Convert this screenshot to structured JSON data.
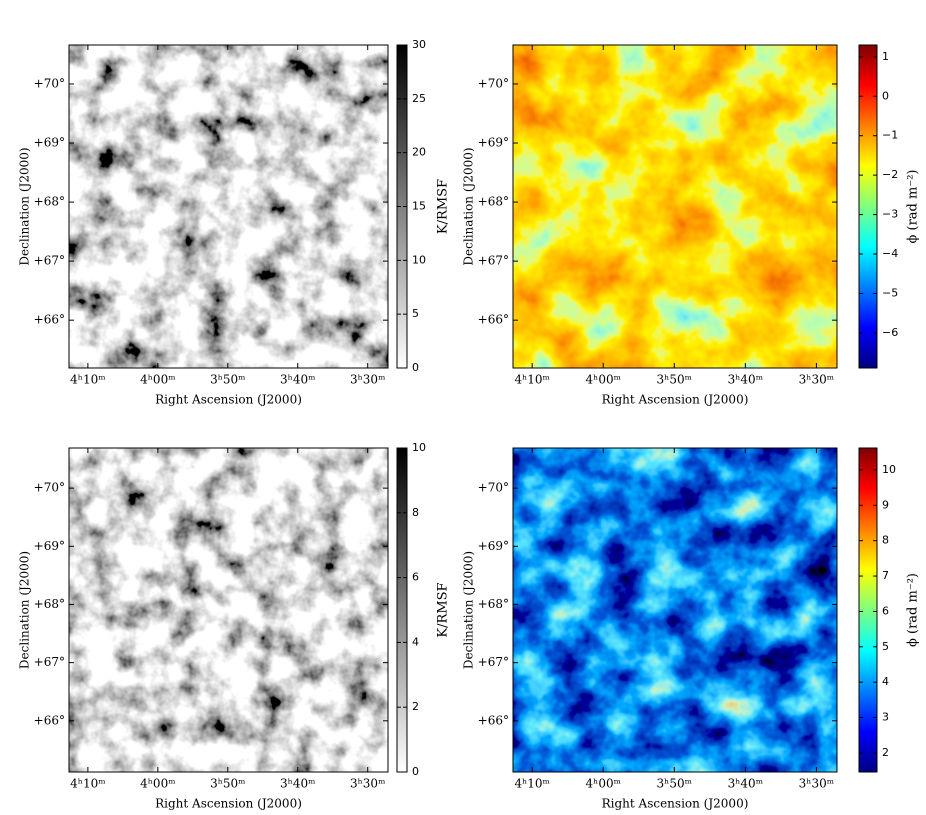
{
  "chart_data": [
    {
      "type": "image",
      "xlabel": "Right Ascension (J2000)",
      "ylabel": "Declination (J2000)",
      "xlim": [
        252.7,
        207.1
      ],
      "ylim": [
        65.19,
        70.66
      ],
      "xticks": [
        {
          "value": 250,
          "label": "4ʰ10ᵐ"
        },
        {
          "value": 240,
          "label": "4ʰ00ᵐ"
        },
        {
          "value": 230,
          "label": "3ʰ50ᵐ"
        },
        {
          "value": 220,
          "label": "3ʰ40ᵐ"
        },
        {
          "value": 210,
          "label": "3ʰ30ᵐ"
        }
      ],
      "yticks": [
        {
          "value": 66,
          "label": "+66°"
        },
        {
          "value": 67,
          "label": "+67°"
        },
        {
          "value": 68,
          "label": "+68°"
        },
        {
          "value": 69,
          "label": "+69°"
        },
        {
          "value": 70,
          "label": "+70°"
        }
      ],
      "colormap": "gray_r",
      "colorbar": {
        "label": "K/RMSF",
        "clim": [
          0,
          30
        ],
        "ticks": [
          0,
          5,
          10,
          15,
          20,
          25,
          30
        ]
      }
    },
    {
      "type": "image",
      "xlabel": "Right Ascension (J2000)",
      "ylabel": "Declination (J2000)",
      "xlim": [
        252.7,
        207.1
      ],
      "ylim": [
        65.19,
        70.66
      ],
      "xticks": [
        {
          "value": 250,
          "label": "4ʰ10ᵐ"
        },
        {
          "value": 240,
          "label": "4ʰ00ᵐ"
        },
        {
          "value": 230,
          "label": "3ʰ50ᵐ"
        },
        {
          "value": 220,
          "label": "3ʰ40ᵐ"
        },
        {
          "value": 210,
          "label": "3ʰ30ᵐ"
        }
      ],
      "yticks": [
        {
          "value": 66,
          "label": "+66°"
        },
        {
          "value": 67,
          "label": "+67°"
        },
        {
          "value": 68,
          "label": "+68°"
        },
        {
          "value": 69,
          "label": "+69°"
        },
        {
          "value": 70,
          "label": "+70°"
        }
      ],
      "colormap": "jet-warm",
      "colorbar": {
        "label": "ϕ (rad m⁻²)",
        "clim": [
          -6.89,
          1.3
        ],
        "ticks": [
          {
            "value": -6,
            "label": "−6"
          },
          {
            "value": -5,
            "label": "−5"
          },
          {
            "value": -4,
            "label": "−4"
          },
          {
            "value": -3,
            "label": "−3"
          },
          {
            "value": -2,
            "label": "−2"
          },
          {
            "value": -1,
            "label": "−1"
          },
          0,
          1
        ]
      }
    },
    {
      "type": "image",
      "xlabel": "Right Ascension (J2000)",
      "ylabel": "Declination (J2000)",
      "xlim": [
        252.7,
        207.1
      ],
      "ylim": [
        65.12,
        70.69
      ],
      "xticks": [
        {
          "value": 250,
          "label": "4ʰ10ᵐ"
        },
        {
          "value": 240,
          "label": "4ʰ00ᵐ"
        },
        {
          "value": 230,
          "label": "3ʰ50ᵐ"
        },
        {
          "value": 220,
          "label": "3ʰ40ᵐ"
        },
        {
          "value": 210,
          "label": "3ʰ30ᵐ"
        }
      ],
      "yticks": [
        {
          "value": 66,
          "label": "+66°"
        },
        {
          "value": 67,
          "label": "+67°"
        },
        {
          "value": 68,
          "label": "+68°"
        },
        {
          "value": 69,
          "label": "+69°"
        },
        {
          "value": 70,
          "label": "+70°"
        }
      ],
      "colormap": "gray_r",
      "colorbar": {
        "label": "K/RMSF",
        "clim": [
          0,
          10
        ],
        "ticks": [
          0,
          2,
          4,
          6,
          8,
          10
        ]
      }
    },
    {
      "type": "image",
      "xlabel": "Right Ascension (J2000)",
      "ylabel": "Declination (J2000)",
      "xlim": [
        252.7,
        207.1
      ],
      "ylim": [
        65.12,
        70.69
      ],
      "xticks": [
        {
          "value": 250,
          "label": "4ʰ10ᵐ"
        },
        {
          "value": 240,
          "label": "4ʰ00ᵐ"
        },
        {
          "value": 230,
          "label": "3ʰ50ᵐ"
        },
        {
          "value": 220,
          "label": "3ʰ40ᵐ"
        },
        {
          "value": 210,
          "label": "3ʰ30ᵐ"
        }
      ],
      "yticks": [
        {
          "value": 66,
          "label": "+66°"
        },
        {
          "value": 67,
          "label": "+67°"
        },
        {
          "value": 68,
          "label": "+68°"
        },
        {
          "value": 69,
          "label": "+69°"
        },
        {
          "value": 70,
          "label": "+70°"
        }
      ],
      "colormap": "jet-dark",
      "colorbar": {
        "label": "ϕ (rad m⁻²)",
        "clim": [
          1.46,
          10.62
        ],
        "ticks": [
          2,
          3,
          4,
          5,
          6,
          7,
          8,
          9,
          10
        ]
      }
    }
  ]
}
